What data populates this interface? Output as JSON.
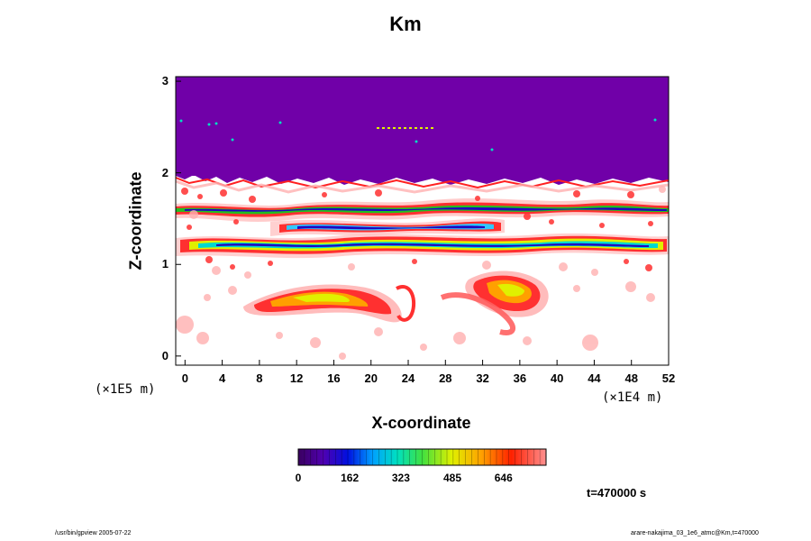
{
  "chart_data": {
    "type": "heatmap",
    "title": "Km",
    "xlabel": "X-coordinate",
    "ylabel": "Z-coordinate",
    "x_scale_note": "(×1E4 m)",
    "y_scale_note": "(×1E5 m)",
    "xlim": [
      -1,
      52
    ],
    "ylim": [
      -0.1,
      3.05
    ],
    "x_ticks": [
      "0",
      "4",
      "8",
      "12",
      "16",
      "20",
      "24",
      "28",
      "32",
      "36",
      "40",
      "44",
      "48",
      "52"
    ],
    "y_ticks": [
      "0",
      "1",
      "2",
      "3"
    ],
    "colorbar": {
      "tick_labels": [
        "0",
        "162",
        "323",
        "485",
        "646"
      ],
      "tick_values": [
        0,
        162,
        323,
        485,
        646
      ],
      "range": [
        0,
        780
      ]
    },
    "time_label": "t=470000 s",
    "upper_layer_value": 60
  },
  "footer": {
    "left": "/usr/bin/gpview 2005-07-22",
    "right": "arare-nakajima_03_1e6_atmc@Km,t=470000"
  },
  "colors": {
    "upper_layer": "#7000a8",
    "background": "#ffffff"
  }
}
